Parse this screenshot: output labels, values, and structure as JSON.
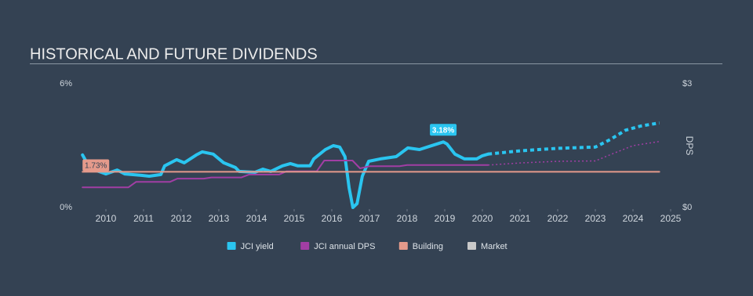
{
  "chart_data": {
    "type": "line",
    "title": "HISTORICAL AND FUTURE DIVIDENDS",
    "y2label": "DPS",
    "xlim": [
      2009.375,
      2025
    ],
    "xticks": [
      2010,
      2011,
      2012,
      2013,
      2014,
      2015,
      2016,
      2017,
      2018,
      2019,
      2020,
      2021,
      2022,
      2023,
      2024,
      2025
    ],
    "ylim": [
      0,
      6
    ],
    "yticks": [
      {
        "value": 0,
        "label": "0%"
      },
      {
        "value": 6,
        "label": "6%"
      }
    ],
    "y2lim": [
      0,
      3
    ],
    "y2ticks": [
      {
        "value": 0,
        "label": "$0"
      },
      {
        "value": 3,
        "label": "$3"
      }
    ],
    "grid": false,
    "series": [
      {
        "name": "JCI yield",
        "color": "#2ac5f0",
        "axis": "y",
        "dashed": false,
        "x": [
          2009.38,
          2009.58,
          2010.0,
          2010.3,
          2010.5,
          2010.94,
          2011.15,
          2011.46,
          2011.56,
          2011.88,
          2012.08,
          2012.4,
          2012.56,
          2012.85,
          2013.13,
          2013.44,
          2013.54,
          2013.96,
          2014.17,
          2014.38,
          2014.69,
          2014.9,
          2015.1,
          2015.42,
          2015.52,
          2015.83,
          2016.04,
          2016.21,
          2016.35,
          2016.46,
          2016.56,
          2016.67,
          2016.81,
          2016.98,
          2017.29,
          2017.71,
          2018.02,
          2018.33,
          2018.6,
          2018.96,
          2019.06,
          2019.27,
          2019.52,
          2019.85,
          2020.0,
          2020.15
        ],
        "values": [
          2.55,
          1.9,
          1.63,
          1.82,
          1.63,
          1.56,
          1.52,
          1.6,
          2.02,
          2.32,
          2.17,
          2.55,
          2.7,
          2.59,
          2.17,
          1.94,
          1.75,
          1.71,
          1.86,
          1.75,
          2.02,
          2.13,
          2.02,
          2.02,
          2.36,
          2.81,
          3.0,
          2.93,
          2.47,
          0.95,
          0.0,
          0.19,
          1.52,
          2.24,
          2.36,
          2.47,
          2.89,
          2.81,
          2.97,
          3.18,
          3.08,
          2.59,
          2.36,
          2.36,
          2.51,
          2.59
        ]
      },
      {
        "name": "JCI annual DPS",
        "color": "#a13ea4",
        "axis": "y2",
        "dashed": false,
        "x": [
          2009.38,
          2010.6,
          2010.8,
          2011.7,
          2011.9,
          2012.6,
          2012.8,
          2013.6,
          2013.8,
          2014.6,
          2014.8,
          2015.6,
          2015.8,
          2016.55,
          2016.75,
          2017.0,
          2017.8,
          2018.0,
          2020.15
        ],
        "values": [
          0.49,
          0.49,
          0.62,
          0.62,
          0.7,
          0.7,
          0.73,
          0.73,
          0.8,
          0.8,
          0.88,
          0.88,
          1.14,
          1.14,
          0.95,
          1.0,
          1.0,
          1.03,
          1.03
        ]
      },
      {
        "name": "JCI yield",
        "color": "#2ac5f0",
        "axis": "y",
        "dashed": true,
        "x": [
          2020.15,
          2021.0,
          2022.0,
          2023.0,
          2023.4,
          2023.8,
          2024.2,
          2024.7
        ],
        "values": [
          2.59,
          2.75,
          2.87,
          2.93,
          3.3,
          3.75,
          3.95,
          4.1
        ]
      },
      {
        "name": "JCI annual DPS",
        "color": "#a13ea4",
        "axis": "y2",
        "dashed": true,
        "x": [
          2020.15,
          2021.0,
          2022.0,
          2023.0,
          2023.5,
          2024.0,
          2024.7
        ],
        "values": [
          1.03,
          1.08,
          1.12,
          1.13,
          1.32,
          1.5,
          1.6
        ]
      },
      {
        "name": "Building",
        "color": "#e59a8b",
        "axis": "y",
        "dashed": false,
        "x": [
          2009.38,
          2024.7
        ],
        "values": [
          1.73,
          1.73
        ]
      },
      {
        "name": "Market",
        "color": "#c9c9c9",
        "axis": "y",
        "dashed": false,
        "x": [],
        "values": []
      }
    ],
    "annotations": [
      {
        "x": 2009.38,
        "value": 1.73,
        "label": "1.73%",
        "color": "#e59a8b"
      },
      {
        "x": 2018.96,
        "value": 3.18,
        "label": "3.18%",
        "color": "#2ac5f0"
      }
    ]
  }
}
